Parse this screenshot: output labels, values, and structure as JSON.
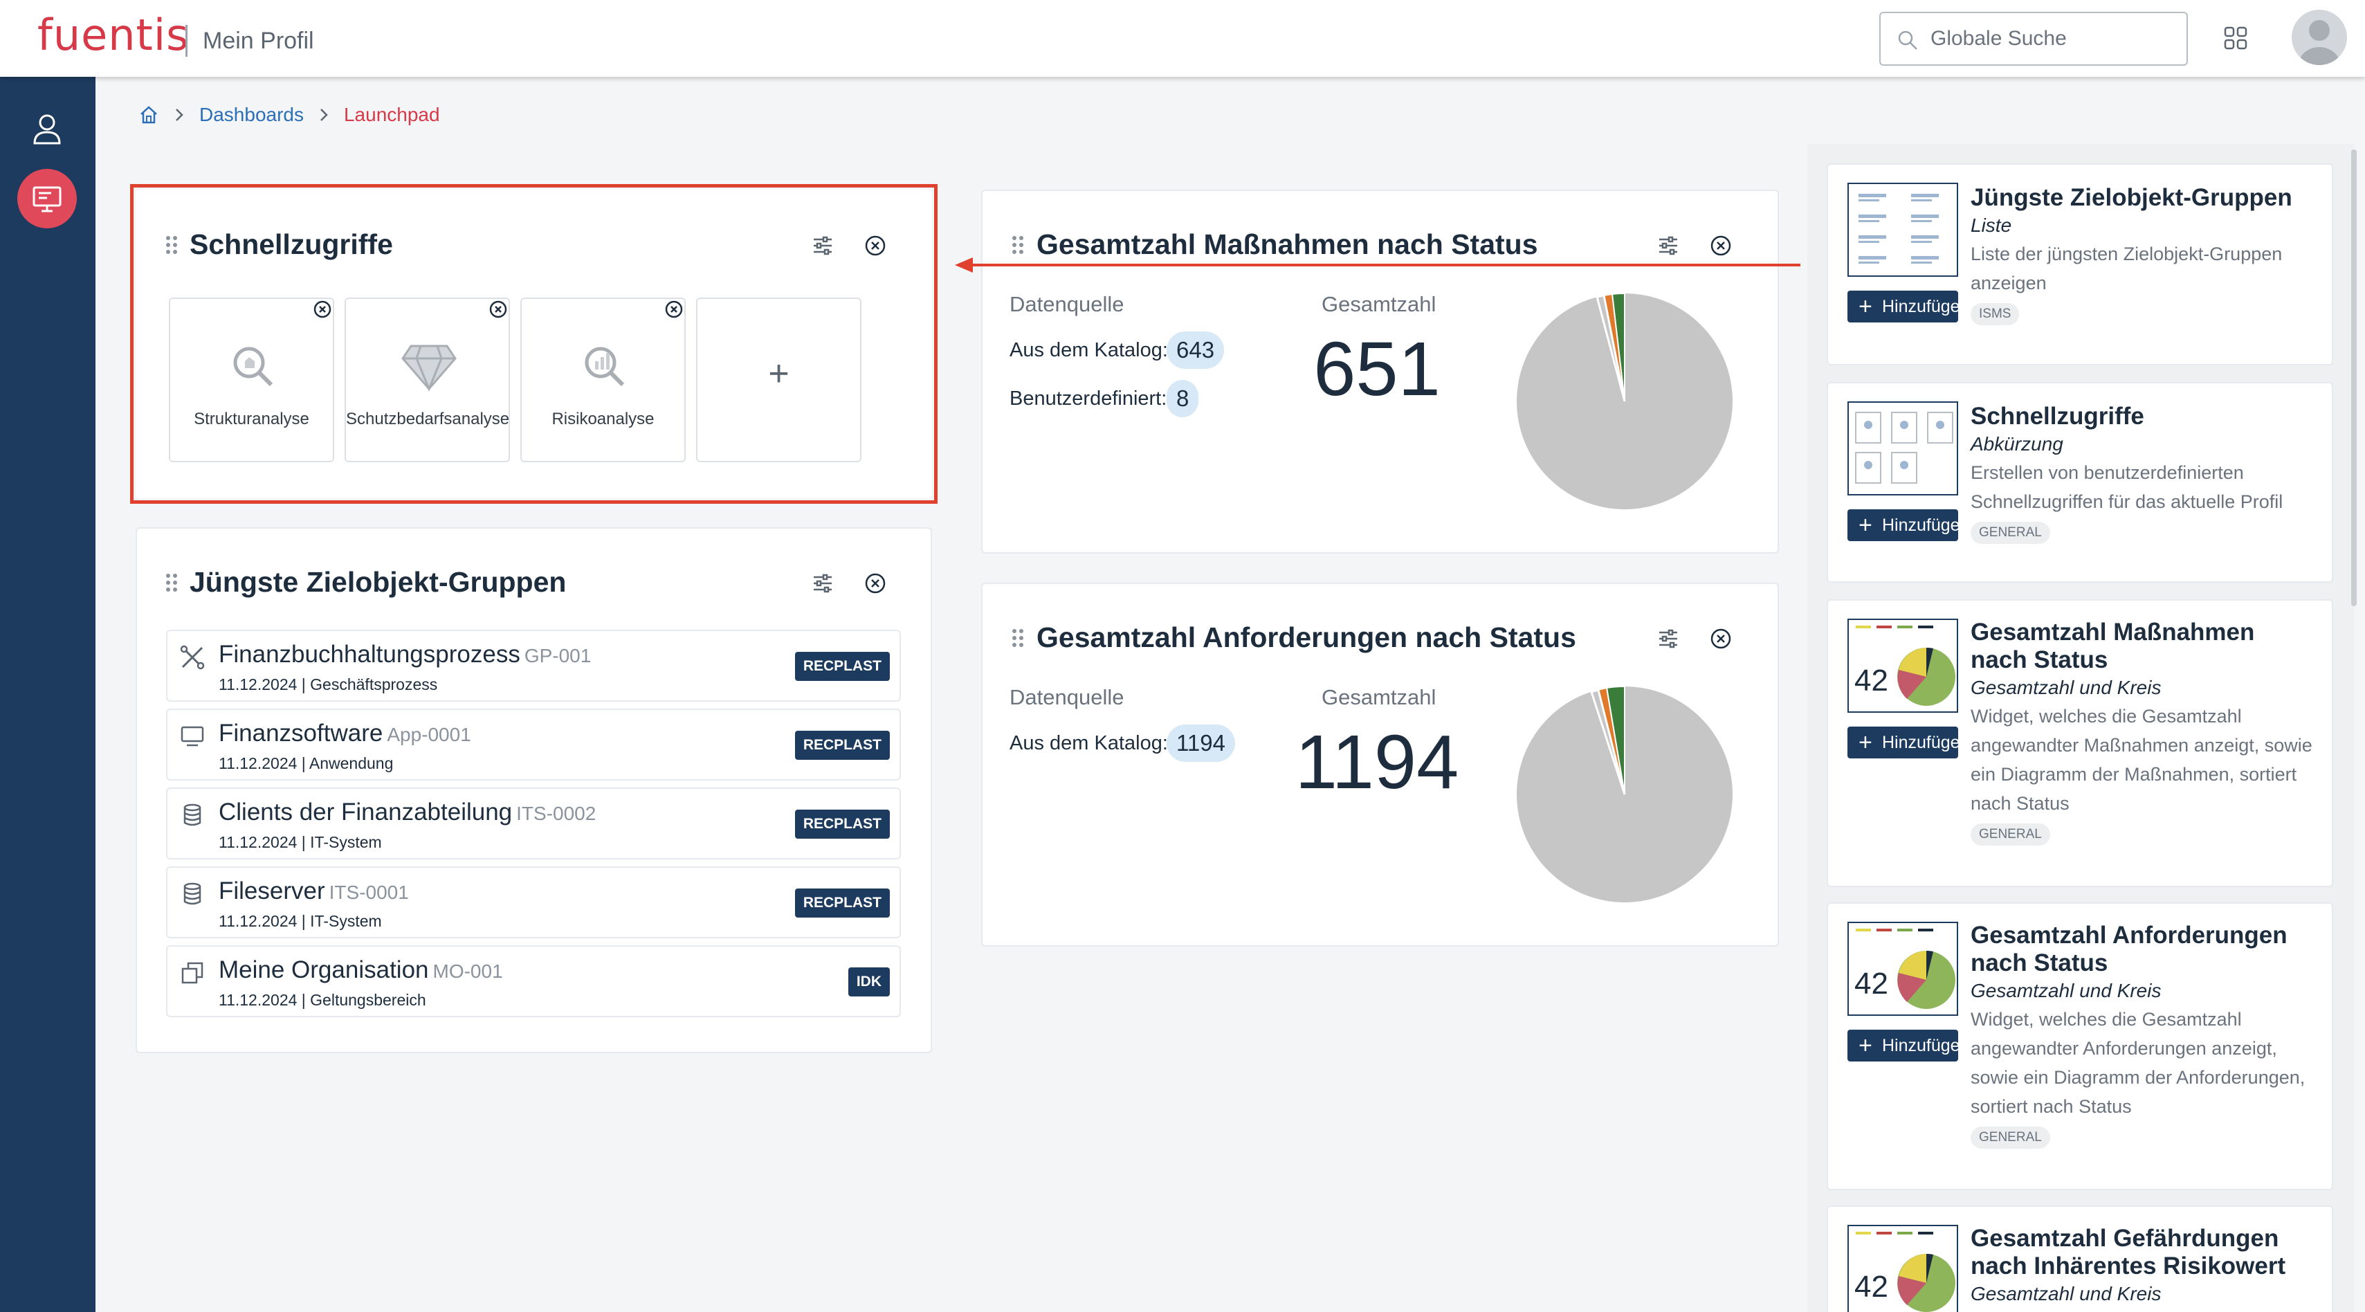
{
  "header": {
    "logo": "fuentis",
    "section_title": "Mein Profil",
    "search_placeholder": "Globale Suche"
  },
  "breadcrumb": {
    "items": [
      "Dashboards"
    ],
    "current": "Launchpad"
  },
  "quick_access": {
    "title": "Schnellzugriffe",
    "tiles": [
      "Strukturanalyse",
      "Schutzbedarfsanalyse",
      "Risikoanalyse"
    ],
    "add_symbol": "+"
  },
  "measures_widget": {
    "title": "Gesamtzahl Maßnahmen nach Status",
    "source_label": "Datenquelle",
    "total_label": "Gesamtzahl",
    "rows": [
      {
        "label": "Aus dem Katalog:",
        "value": "643"
      },
      {
        "label": "Benutzerdefiniert:",
        "value": "8"
      }
    ],
    "total": "651"
  },
  "requirements_widget": {
    "title": "Gesamtzahl Anforderungen nach Status",
    "source_label": "Datenquelle",
    "total_label": "Gesamtzahl",
    "rows": [
      {
        "label": "Aus dem Katalog:",
        "value": "1194"
      }
    ],
    "total": "1194"
  },
  "groups_widget": {
    "title": "Jüngste Zielobjekt-Gruppen",
    "rows": [
      {
        "name": "Finanzbuchhaltungsprozess",
        "code": "GP-001",
        "sub": "11.12.2024 | Geschäftsprozess",
        "badge": "RECPLAST",
        "icon": "process-icon"
      },
      {
        "name": "Finanzsoftware",
        "code": "App-0001",
        "sub": "11.12.2024 | Anwendung",
        "badge": "RECPLAST",
        "icon": "monitor-icon"
      },
      {
        "name": "Clients der Finanzabteilung",
        "code": "ITS-0002",
        "sub": "11.12.2024 | IT-System",
        "badge": "RECPLAST",
        "icon": "database-icon"
      },
      {
        "name": "Fileserver",
        "code": "ITS-0001",
        "sub": "11.12.2024 | IT-System",
        "badge": "RECPLAST",
        "icon": "database-icon"
      },
      {
        "name": "Meine Organisation",
        "code": "MO-001",
        "sub": "11.12.2024 | Geltungsbereich",
        "badge": "IDK",
        "icon": "organization-icon"
      }
    ]
  },
  "catalog": {
    "add_label": "Hinzufüge",
    "thumb_number": "42",
    "items": [
      {
        "title": "Jüngste Zielobjekt-Gruppen",
        "subtitle": "Liste",
        "description": "Liste der jüngsten Zielobjekt-Gruppen anzeigen",
        "tag": "ISMS"
      },
      {
        "title": "Schnellzugriffe",
        "subtitle": "Abkürzung",
        "description": "Erstellen von benutzerdefinierten Schnellzugriffen für das aktuelle Profil",
        "tag": "GENERAL"
      },
      {
        "title": "Gesamtzahl Maßnahmen nach Status",
        "subtitle": "Gesamtzahl und Kreis",
        "description": "Widget, welches die Gesamtzahl angewandter Maßnahmen anzeigt, sowie ein Diagramm der Maßnahmen, sortiert nach Status",
        "tag": "GENERAL"
      },
      {
        "title": "Gesamtzahl Anforderungen nach Status",
        "subtitle": "Gesamtzahl und Kreis",
        "description": "Widget, welches die Gesamtzahl angewandter Anforderungen anzeigt, sowie ein Diagramm der Anforderungen, sortiert nach Status",
        "tag": "GENERAL"
      },
      {
        "title": "Gesamtzahl Gefährdungen nach Inhärentes Risikowert",
        "subtitle": "Gesamtzahl und Kreis",
        "description": "",
        "tag": ""
      }
    ]
  },
  "colors": {
    "brand": "#d63a48",
    "nav": "#1d3a5f",
    "highlight": "#e0412f",
    "pie_grey": "#c6c6c6",
    "pie_green": "#3a7d3a",
    "pie_orange": "#e07a2a"
  }
}
